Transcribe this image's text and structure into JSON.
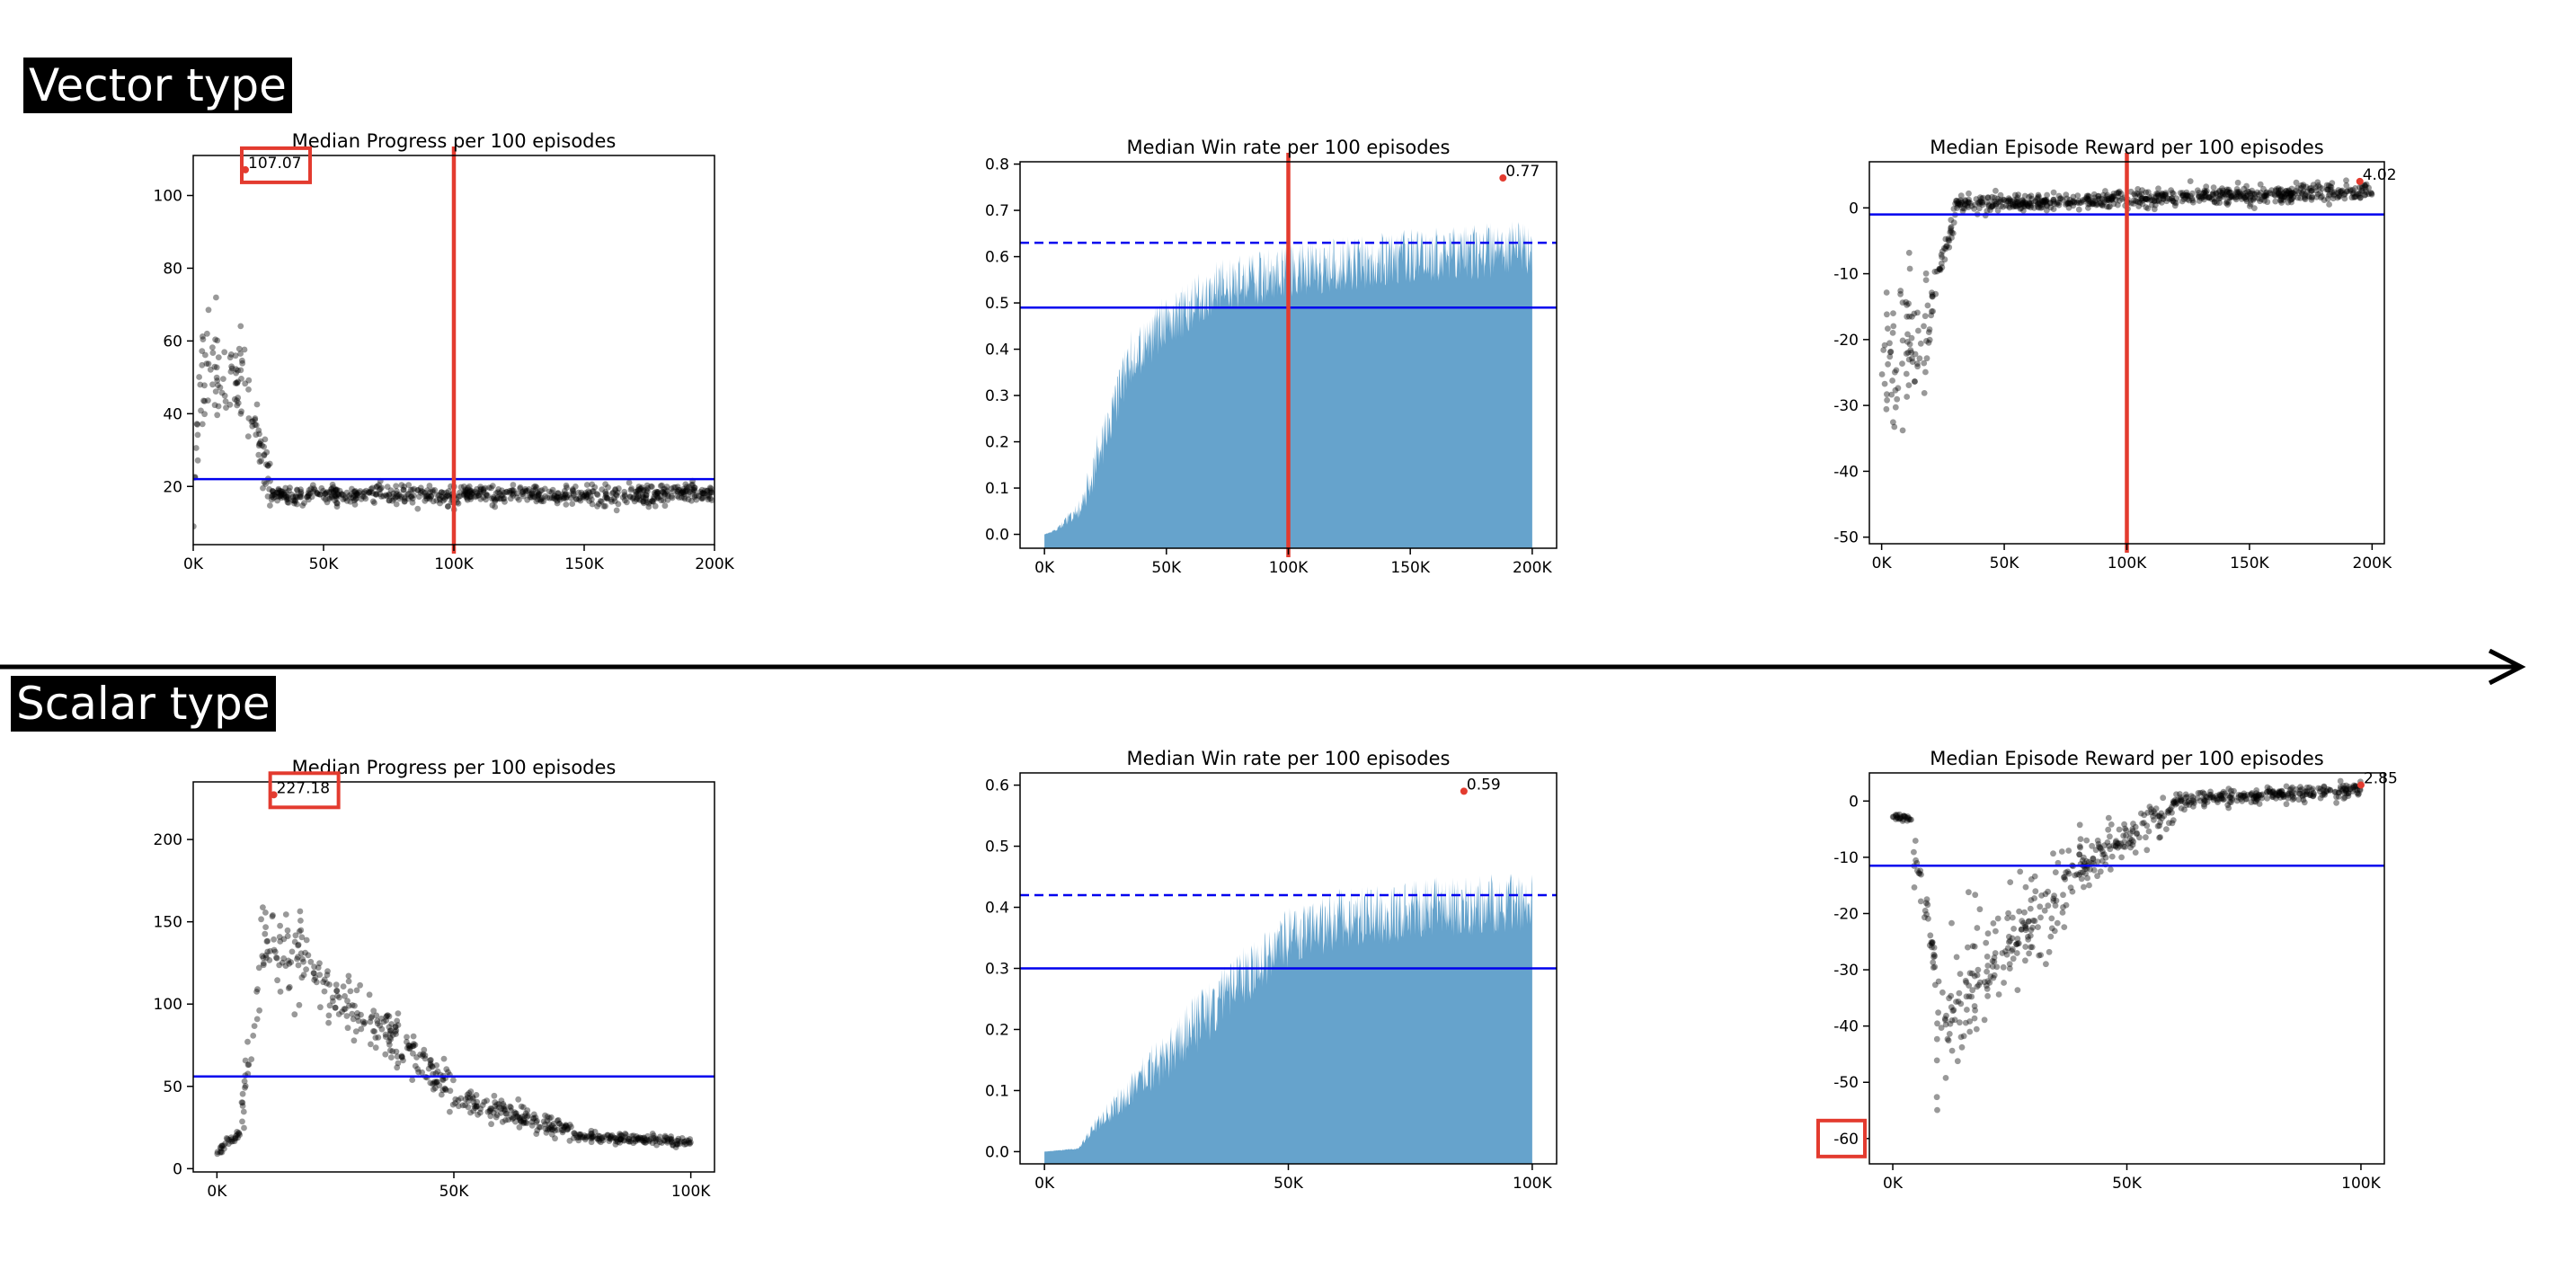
{
  "sections": {
    "vector": {
      "label": "Vector type"
    },
    "scalar": {
      "label": "Scalar type"
    }
  },
  "colors": {
    "scatter_points": "#000000",
    "area_fill": "#5e9ec9",
    "mean_line": "#0000ee",
    "vertical_marker": "#e33b2f",
    "highlight_box": "#e33b2f",
    "max_point": "#e33b2f"
  },
  "chart_data": [
    {
      "id": "vector-progress",
      "type": "scatter",
      "title": "Median Progress per 100 episodes",
      "xlim": [
        0,
        200000
      ],
      "ylim": [
        4,
        111
      ],
      "xticks": [
        0,
        50000,
        100000,
        150000,
        200000
      ],
      "xtick_labels": [
        "0K",
        "50K",
        "100K",
        "150K",
        "200K"
      ],
      "yticks": [
        20,
        40,
        60,
        80,
        100
      ],
      "ytick_labels": [
        "20",
        "40",
        "60",
        "80",
        "100"
      ],
      "mean_line": 22,
      "vline_x": 100000,
      "max_point": {
        "x": 20000,
        "y": 107.07,
        "label": "107.07",
        "boxed": true
      },
      "scatter_profile": {
        "n": 800,
        "segments": [
          {
            "x0": 0,
            "x1": 2000,
            "y0": 12,
            "y1": 45,
            "spread": 10
          },
          {
            "x0": 2000,
            "x1": 20000,
            "y0": 48,
            "y1": 50,
            "spread": 14
          },
          {
            "x0": 20000,
            "x1": 30000,
            "y0": 48,
            "y1": 19,
            "spread": 7
          },
          {
            "x0": 30000,
            "x1": 200000,
            "y0": 17.5,
            "y1": 18,
            "spread": 2.5
          }
        ]
      }
    },
    {
      "id": "vector-winrate",
      "type": "area",
      "title": "Median Win rate per 100 episodes",
      "xlim": [
        -10000,
        210000
      ],
      "ylim": [
        -0.03,
        0.805
      ],
      "xticks": [
        0,
        50000,
        100000,
        150000,
        200000
      ],
      "xtick_labels": [
        "0K",
        "50K",
        "100K",
        "150K",
        "200K"
      ],
      "yticks": [
        0,
        0.1,
        0.2,
        0.3,
        0.4,
        0.5,
        0.6,
        0.7,
        0.8
      ],
      "ytick_labels": [
        "0.0",
        "0.1",
        "0.2",
        "0.3",
        "0.4",
        "0.5",
        "0.6",
        "0.7",
        "0.8"
      ],
      "mean_line": 0.49,
      "dashed_line": 0.63,
      "vline_x": 100000,
      "max_point": {
        "x": 188000,
        "y": 0.77,
        "label": "0.77",
        "boxed": false
      },
      "area_profile": {
        "x_start": 0,
        "x_end": 200000,
        "noise": 0.06,
        "knots": [
          [
            0,
            0
          ],
          [
            5000,
            0.01
          ],
          [
            15000,
            0.06
          ],
          [
            25000,
            0.22
          ],
          [
            35000,
            0.38
          ],
          [
            50000,
            0.46
          ],
          [
            70000,
            0.53
          ],
          [
            100000,
            0.57
          ],
          [
            150000,
            0.6
          ],
          [
            200000,
            0.62
          ]
        ]
      }
    },
    {
      "id": "vector-reward",
      "type": "scatter",
      "title": "Median Episode Reward per 100 episodes",
      "xlim": [
        -5000,
        205000
      ],
      "ylim": [
        -51,
        7
      ],
      "xticks": [
        0,
        50000,
        100000,
        150000,
        200000
      ],
      "xtick_labels": [
        "0K",
        "50K",
        "100K",
        "150K",
        "200K"
      ],
      "yticks": [
        -50,
        -40,
        -30,
        -20,
        -10,
        0
      ],
      "ytick_labels": [
        "-50",
        "-40",
        "-30",
        "-20",
        "-10",
        "0"
      ],
      "mean_line": -1,
      "vline_x": 100000,
      "max_point": {
        "x": 195000,
        "y": 4.02,
        "label": "4.02",
        "boxed": false
      },
      "scatter_profile": {
        "n": 800,
        "segments": [
          {
            "x0": 0,
            "x1": 20000,
            "y0": -23,
            "y1": -21,
            "spread": 11
          },
          {
            "x0": 20000,
            "x1": 30000,
            "y0": -15,
            "y1": -1,
            "spread": 2.5
          },
          {
            "x0": 30000,
            "x1": 200000,
            "y0": 0.5,
            "y1": 2.5,
            "spread": 1.2
          }
        ]
      }
    },
    {
      "id": "scalar-progress",
      "type": "scatter",
      "title": "Median Progress per 100 episodes",
      "xlim": [
        -5000,
        105000
      ],
      "ylim": [
        -2,
        235
      ],
      "xticks": [
        0,
        50000,
        100000
      ],
      "xtick_labels": [
        "0K",
        "50K",
        "100K"
      ],
      "yticks": [
        0,
        50,
        100,
        150,
        200
      ],
      "ytick_labels": [
        "0",
        "50",
        "100",
        "150",
        "200"
      ],
      "mean_line": 56,
      "vline_x": null,
      "max_point": {
        "x": 12000,
        "y": 227.18,
        "label": "227.18",
        "boxed": true
      },
      "scatter_profile": {
        "n": 600,
        "segments": [
          {
            "x0": 0,
            "x1": 5000,
            "y0": 10,
            "y1": 22,
            "spread": 3
          },
          {
            "x0": 5000,
            "x1": 9000,
            "y0": 30,
            "y1": 110,
            "spread": 15
          },
          {
            "x0": 9000,
            "x1": 20000,
            "y0": 140,
            "y1": 125,
            "spread": 25
          },
          {
            "x0": 20000,
            "x1": 50000,
            "y0": 115,
            "y1": 50,
            "spread": 15
          },
          {
            "x0": 50000,
            "x1": 75000,
            "y0": 45,
            "y1": 22,
            "spread": 6
          },
          {
            "x0": 75000,
            "x1": 100000,
            "y0": 20,
            "y1": 16,
            "spread": 3
          }
        ]
      }
    },
    {
      "id": "scalar-winrate",
      "type": "area",
      "title": "Median Win rate per 100 episodes",
      "xlim": [
        -5000,
        105000
      ],
      "ylim": [
        -0.02,
        0.62
      ],
      "xticks": [
        0,
        50000,
        100000
      ],
      "xtick_labels": [
        "0K",
        "50K",
        "100K"
      ],
      "yticks": [
        0,
        0.1,
        0.2,
        0.3,
        0.4,
        0.5,
        0.6
      ],
      "ytick_labels": [
        "0.0",
        "0.1",
        "0.2",
        "0.3",
        "0.4",
        "0.5",
        "0.6"
      ],
      "mean_line": 0.3,
      "dashed_line": 0.42,
      "vline_x": null,
      "max_point": {
        "x": 86000,
        "y": 0.59,
        "label": "0.59",
        "boxed": false
      },
      "area_profile": {
        "x_start": 0,
        "x_end": 100000,
        "noise": 0.05,
        "knots": [
          [
            0,
            0
          ],
          [
            7000,
            0.005
          ],
          [
            10000,
            0.04
          ],
          [
            20000,
            0.12
          ],
          [
            30000,
            0.2
          ],
          [
            40000,
            0.28
          ],
          [
            50000,
            0.35
          ],
          [
            60000,
            0.38
          ],
          [
            80000,
            0.4
          ],
          [
            100000,
            0.41
          ]
        ]
      }
    },
    {
      "id": "scalar-reward",
      "type": "scatter",
      "title": "Median Episode Reward per 100 episodes",
      "xlim": [
        -5000,
        105000
      ],
      "ylim": [
        -64.5,
        5
      ],
      "xticks": [
        0,
        50000,
        100000
      ],
      "xtick_labels": [
        "0K",
        "50K",
        "100K"
      ],
      "yticks": [
        -60,
        -50,
        -40,
        -30,
        -20,
        -10,
        0
      ],
      "ytick_labels": [
        "-60",
        "-50",
        "-40",
        "-30",
        "-20",
        "-10",
        "0"
      ],
      "mean_line": -11.5,
      "vline_x": null,
      "max_point": {
        "x": 100000,
        "y": 2.85,
        "label": "2.85",
        "boxed": false
      },
      "boxed_tick": "-60",
      "scatter_profile": {
        "n": 650,
        "segments": [
          {
            "x0": 0,
            "x1": 4000,
            "y0": -2.5,
            "y1": -3.5,
            "spread": 0.6
          },
          {
            "x0": 4000,
            "x1": 9000,
            "y0": -5,
            "y1": -30,
            "spread": 4
          },
          {
            "x0": 9000,
            "x1": 20000,
            "y0": -45,
            "y1": -30,
            "spread": 12
          },
          {
            "x0": 20000,
            "x1": 40000,
            "y0": -30,
            "y1": -12,
            "spread": 7
          },
          {
            "x0": 40000,
            "x1": 60000,
            "y0": -12,
            "y1": -1,
            "spread": 3.5
          },
          {
            "x0": 60000,
            "x1": 100000,
            "y0": 0,
            "y1": 2,
            "spread": 1.2
          }
        ]
      }
    }
  ]
}
